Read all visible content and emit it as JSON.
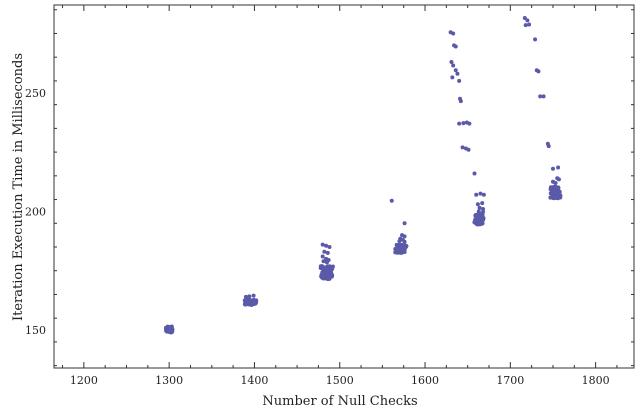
{
  "chart_data": {
    "type": "scatter",
    "title": "",
    "xlabel": "Number of Null Checks",
    "ylabel": "Iteration Execution Time in Milliseconds",
    "xlim": [
      1165,
      1845
    ],
    "ylim": [
      134,
      287
    ],
    "xticks": [
      1200,
      1300,
      1400,
      1500,
      1600,
      1700,
      1800
    ],
    "yticks": [
      150,
      200,
      250
    ],
    "grid": false,
    "marker_color": "#5a5aa8",
    "clusters": [
      {
        "x_center": 1300,
        "x_spread": 5,
        "y_min": 149,
        "y_max": 151.5,
        "count": 55,
        "outliers": []
      },
      {
        "x_center": 1395,
        "x_spread": 9,
        "y_min": 160.5,
        "y_max": 163,
        "count": 50,
        "outliers": [
          [
            1390,
            164.0
          ],
          [
            1399,
            164.5
          ],
          [
            1394,
            164.2
          ]
        ]
      },
      {
        "x_center": 1485,
        "x_spread": 8,
        "y_min": 171.5,
        "y_max": 177,
        "count": 90,
        "outliers": [
          [
            1480,
            186.0
          ],
          [
            1484,
            185.5
          ],
          [
            1488,
            185.0
          ],
          [
            1482,
            183.0
          ],
          [
            1486,
            182.5
          ],
          [
            1480,
            181.0
          ],
          [
            1484,
            180.0
          ],
          [
            1487,
            179.5
          ],
          [
            1481,
            179.0
          ],
          [
            1485,
            178.5
          ]
        ]
      },
      {
        "x_center": 1572,
        "x_spread": 7,
        "y_min": 182.5,
        "y_max": 186,
        "count": 80,
        "outliers": [
          [
            1561,
            204.5
          ],
          [
            1576,
            195.0
          ],
          [
            1573,
            190.0
          ],
          [
            1576,
            189.5
          ],
          [
            1571,
            188.5
          ],
          [
            1574,
            188.0
          ],
          [
            1570,
            187.5
          ],
          [
            1576,
            187.2
          ]
        ]
      },
      {
        "x_center": 1663,
        "x_spread": 6,
        "y_min": 194.5,
        "y_max": 199,
        "count": 90,
        "outliers": [
          [
            1630,
            275.5
          ],
          [
            1633,
            275.0
          ],
          [
            1634,
            270.0
          ],
          [
            1636,
            269.5
          ],
          [
            1631,
            263.0
          ],
          [
            1633,
            261.5
          ],
          [
            1636,
            259.5
          ],
          [
            1638,
            258.0
          ],
          [
            1632,
            256.5
          ],
          [
            1640,
            255.0
          ],
          [
            1641,
            247.5
          ],
          [
            1642,
            246.5
          ],
          [
            1640,
            237.0
          ],
          [
            1645,
            237.2
          ],
          [
            1649,
            237.5
          ],
          [
            1652,
            237.0
          ],
          [
            1644,
            227.0
          ],
          [
            1648,
            226.5
          ],
          [
            1651,
            226.0
          ],
          [
            1658,
            216.0
          ],
          [
            1660,
            207.0
          ],
          [
            1665,
            207.5
          ],
          [
            1669,
            207.0
          ],
          [
            1662,
            203.0
          ],
          [
            1667,
            203.5
          ],
          [
            1664,
            201.5
          ],
          [
            1668,
            201.0
          ],
          [
            1663,
            200.0
          ],
          [
            1668,
            199.8
          ]
        ]
      },
      {
        "x_center": 1753,
        "x_spread": 7,
        "y_min": 205.5,
        "y_max": 210.5,
        "count": 70,
        "outliers": [
          [
            1717,
            281.5
          ],
          [
            1720,
            280.5
          ],
          [
            1718,
            278.5
          ],
          [
            1722,
            278.8
          ],
          [
            1729,
            272.5
          ],
          [
            1731,
            259.5
          ],
          [
            1733,
            259.0
          ],
          [
            1735,
            248.5
          ],
          [
            1739,
            248.5
          ],
          [
            1744,
            228.5
          ],
          [
            1745,
            227.5
          ],
          [
            1750,
            218.0
          ],
          [
            1756,
            218.5
          ],
          [
            1755,
            214.0
          ],
          [
            1757,
            213.5
          ],
          [
            1750,
            212.5
          ],
          [
            1753,
            212.0
          ]
        ]
      }
    ]
  }
}
